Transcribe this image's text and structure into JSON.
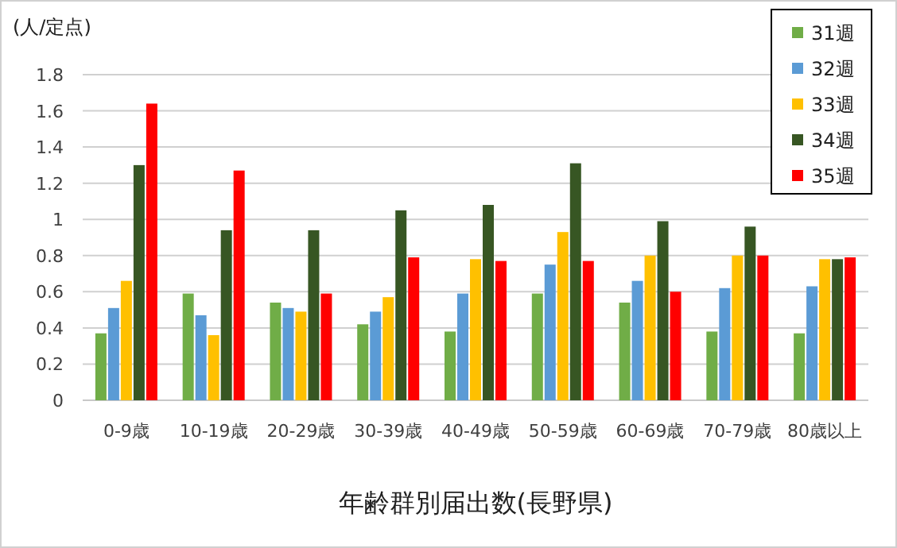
{
  "chart_data": {
    "type": "bar",
    "xlabel": "年齢群別届出数(長野県)",
    "ylabel": "(人/定点)",
    "categories": [
      "0-9歳",
      "10-19歳",
      "20-29歳",
      "30-39歳",
      "40-49歳",
      "50-59歳",
      "60-69歳",
      "70-79歳",
      "80歳以上"
    ],
    "series": [
      {
        "name": "31週",
        "color": "#70ad47",
        "values": [
          0.37,
          0.59,
          0.54,
          0.42,
          0.38,
          0.59,
          0.54,
          0.38,
          0.37
        ]
      },
      {
        "name": "32週",
        "color": "#5b9bd5",
        "values": [
          0.51,
          0.47,
          0.51,
          0.49,
          0.59,
          0.75,
          0.66,
          0.62,
          0.63
        ]
      },
      {
        "name": "33週",
        "color": "#ffc000",
        "values": [
          0.66,
          0.36,
          0.49,
          0.57,
          0.78,
          0.93,
          0.8,
          0.8,
          0.78
        ]
      },
      {
        "name": "34週",
        "color": "#375623",
        "values": [
          1.3,
          0.94,
          0.94,
          1.05,
          1.08,
          1.31,
          0.99,
          0.96,
          0.78
        ]
      },
      {
        "name": "35週",
        "color": "#ff0000",
        "values": [
          1.64,
          1.27,
          0.59,
          0.79,
          0.77,
          0.77,
          0.6,
          0.8,
          0.79
        ]
      }
    ],
    "ylim": [
      0,
      1.8
    ],
    "yticks": [
      0,
      0.2,
      0.4,
      0.6,
      0.8,
      1,
      1.2,
      1.4,
      1.6,
      1.8
    ],
    "grid": "y",
    "legend": "top right"
  }
}
